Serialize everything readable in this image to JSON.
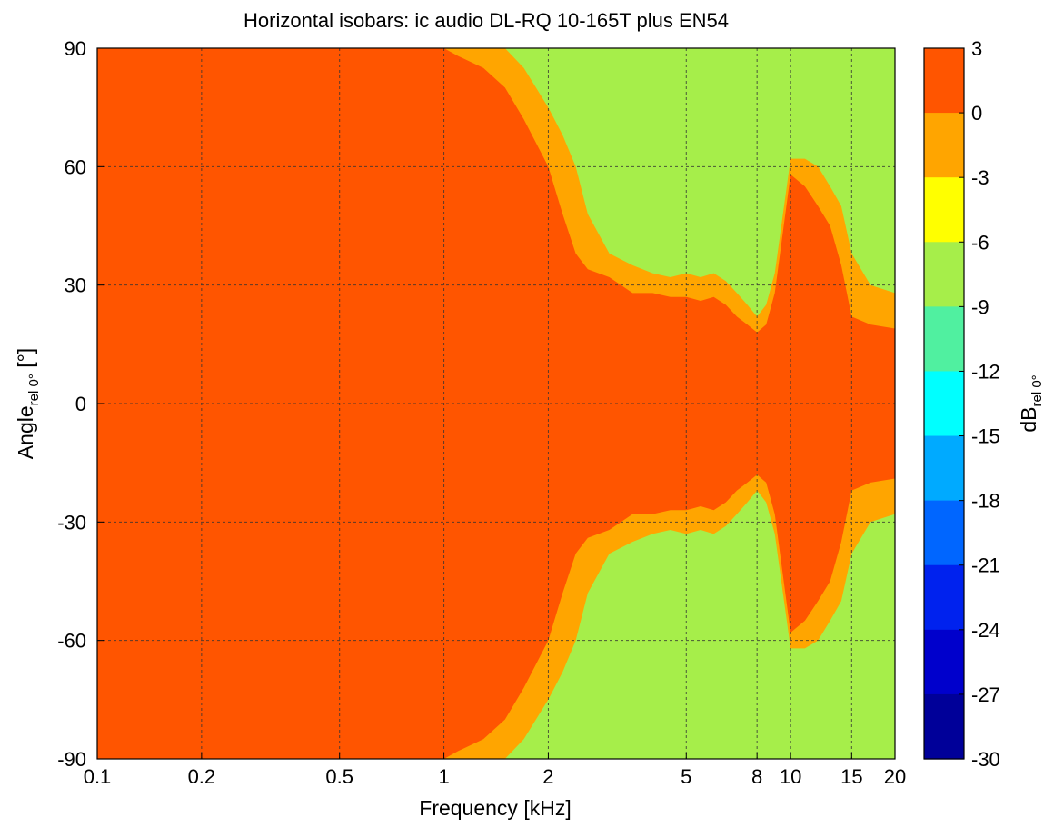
{
  "chart_data": {
    "type": "heatmap",
    "title": "Horizontal isobars: ic audio  DL-RQ 10-165T plus EN54",
    "xlabel": {
      "main": "Frequency [kHz]"
    },
    "ylabel": {
      "main": "Angle",
      "sub": "rel 0°",
      "suffix": " [°]"
    },
    "colorbar_label": {
      "main": "dB",
      "sub": "rel 0°"
    },
    "x_scale": "log",
    "xlim": [
      0.1,
      20
    ],
    "ylim": [
      -90,
      90
    ],
    "x_ticks": [
      0.1,
      0.2,
      0.5,
      1,
      2,
      5,
      8,
      10,
      15,
      20
    ],
    "x_tick_labels": [
      "0.1",
      "0.2",
      "0.5",
      "1",
      "2",
      "5",
      "8",
      "10",
      "15",
      "20"
    ],
    "y_ticks": [
      90,
      60,
      30,
      0,
      -30,
      -60,
      -90
    ],
    "y_tick_labels": [
      "90",
      "60",
      "30",
      "0",
      "-30",
      "-60",
      "-90"
    ],
    "grid": true,
    "colorbar": {
      "levels": [
        3,
        0,
        -3,
        -6,
        -9,
        -12,
        -15,
        -18,
        -21,
        -24,
        -27,
        -30
      ],
      "tick_labels": [
        "3",
        "0",
        "-3",
        "-6",
        "-9",
        "-12",
        "-15",
        "-18",
        "-21",
        "-24",
        "-27",
        "-30"
      ],
      "colors": [
        "#ff5500",
        "#ff5500",
        "#ffa500",
        "#ffff00",
        "#a6ee4a",
        "#50f0a0",
        "#00ffff",
        "#00aaff",
        "#0066ff",
        "#0022ee",
        "#0000cc",
        "#000099"
      ]
    },
    "contour_boundaries_deg": {
      "frequencies_khz": [
        0.1,
        0.45,
        0.5,
        0.55,
        0.8,
        1.0,
        1.1,
        1.3,
        1.5,
        1.7,
        2.0,
        2.2,
        2.4,
        2.6,
        3.0,
        3.5,
        4.0,
        4.5,
        5.0,
        5.5,
        6.0,
        6.5,
        7.0,
        7.5,
        8.0,
        8.5,
        9.0,
        10.0,
        11.0,
        12.0,
        13.0,
        14.0,
        15.0,
        17.0,
        20.0
      ],
      "minus3dB": [
        90,
        90,
        90,
        90,
        90,
        90,
        88,
        85,
        80,
        72,
        60,
        48,
        38,
        34,
        32,
        28,
        28,
        27,
        27,
        26,
        27,
        25,
        22,
        20,
        18,
        20,
        28,
        58,
        55,
        50,
        45,
        35,
        22,
        20,
        19
      ],
      "minus6dB": [
        90,
        90,
        90,
        90,
        90,
        90,
        90,
        90,
        90,
        85,
        75,
        68,
        60,
        48,
        38,
        35,
        33,
        32,
        33,
        32,
        33,
        31,
        28,
        25,
        22,
        25,
        33,
        62,
        62,
        60,
        55,
        50,
        38,
        30,
        28
      ]
    }
  }
}
